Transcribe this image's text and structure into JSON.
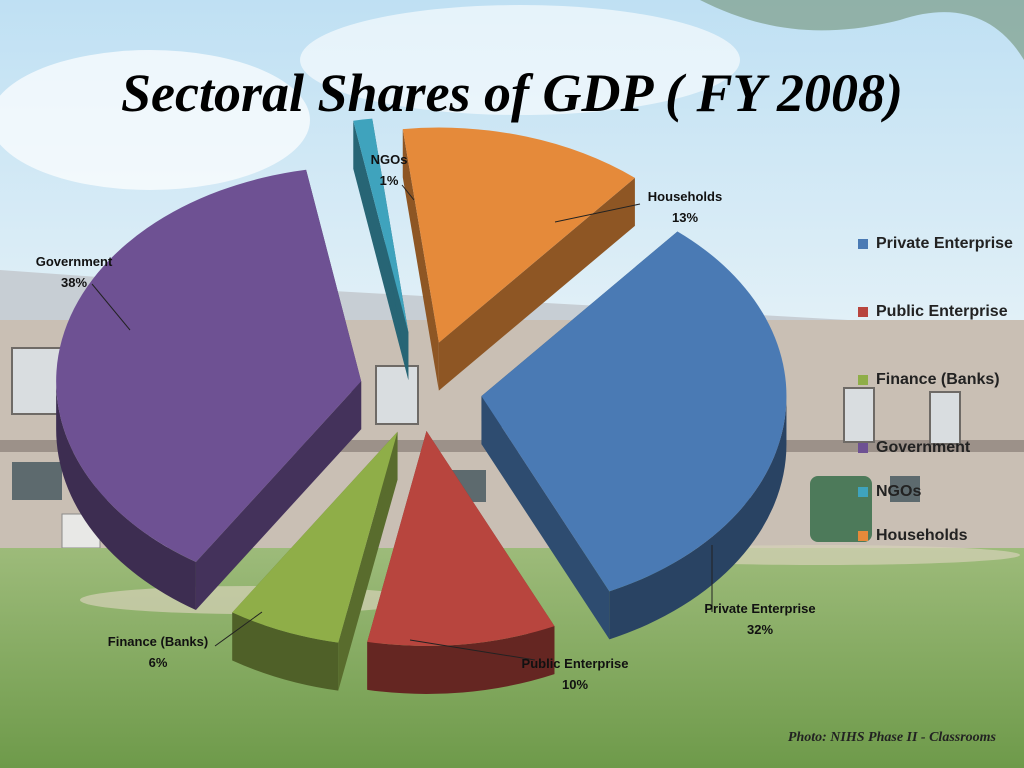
{
  "title": "Sectoral Shares of GDP ( FY 2008)",
  "caption": "Photo: NIHS Phase II - Classrooms",
  "legend": [
    {
      "label": "Private Enterprise",
      "color": "#4a7ab4"
    },
    {
      "label": "Public Enterprise",
      "color": "#b8453e"
    },
    {
      "label": "Finance (Banks)",
      "color": "#8fae48"
    },
    {
      "label": "Government",
      "color": "#6e5193"
    },
    {
      "label": "NGOs",
      "color": "#3fa3bd"
    },
    {
      "label": "Households",
      "color": "#e58a3a"
    }
  ],
  "chart_data": {
    "type": "pie",
    "title": "Sectoral Shares of GDP ( FY 2008)",
    "categories": [
      "Private Enterprise",
      "Public Enterprise",
      "Finance (Banks)",
      "Government",
      "NGOs",
      "Households"
    ],
    "values": [
      32,
      10,
      6,
      38,
      1,
      13
    ],
    "unit": "%",
    "data_labels": [
      {
        "name": "Private Enterprise",
        "value": "32%"
      },
      {
        "name": "Public Enterprise",
        "value": "10%"
      },
      {
        "name": "Finance (Banks)",
        "value": "6%"
      },
      {
        "name": "Government",
        "value": "38%"
      },
      {
        "name": "NGOs",
        "value": "1%"
      },
      {
        "name": "Households",
        "value": "13%"
      }
    ],
    "legend_position": "right",
    "exploded": true,
    "style": "3d"
  }
}
